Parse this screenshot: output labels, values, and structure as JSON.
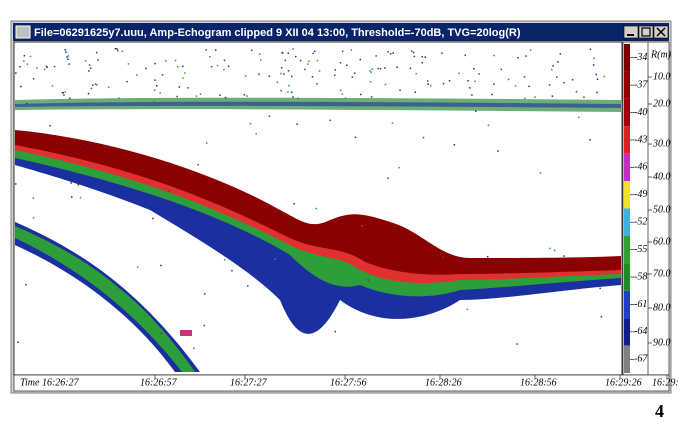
{
  "window": {
    "title": "File=06291625y7.uuu, Amp-Echogram clipped 9 XII 04 13:00, Threshold=-70dB, TVG=20log(R)"
  },
  "color_scale": {
    "labels": [
      "-34",
      "-37",
      "-40",
      "-43",
      "-46",
      "-49",
      "-52",
      "-55",
      "-58",
      "-61",
      "-64",
      "-67"
    ]
  },
  "depth_axis": {
    "title": "R(m)",
    "labels": [
      "10.0",
      "20.0",
      "30.0",
      "40.0",
      "50.0",
      "60.0",
      "70.0",
      "80.0",
      "90.0"
    ]
  },
  "time_axis": {
    "labels": [
      "Time 16:26:27",
      "16:26:57",
      "16:27:27",
      "16:27:56",
      "16:28:26",
      "16:28:56",
      "16:29:26",
      "16:29:"
    ]
  },
  "page_number": "4"
}
